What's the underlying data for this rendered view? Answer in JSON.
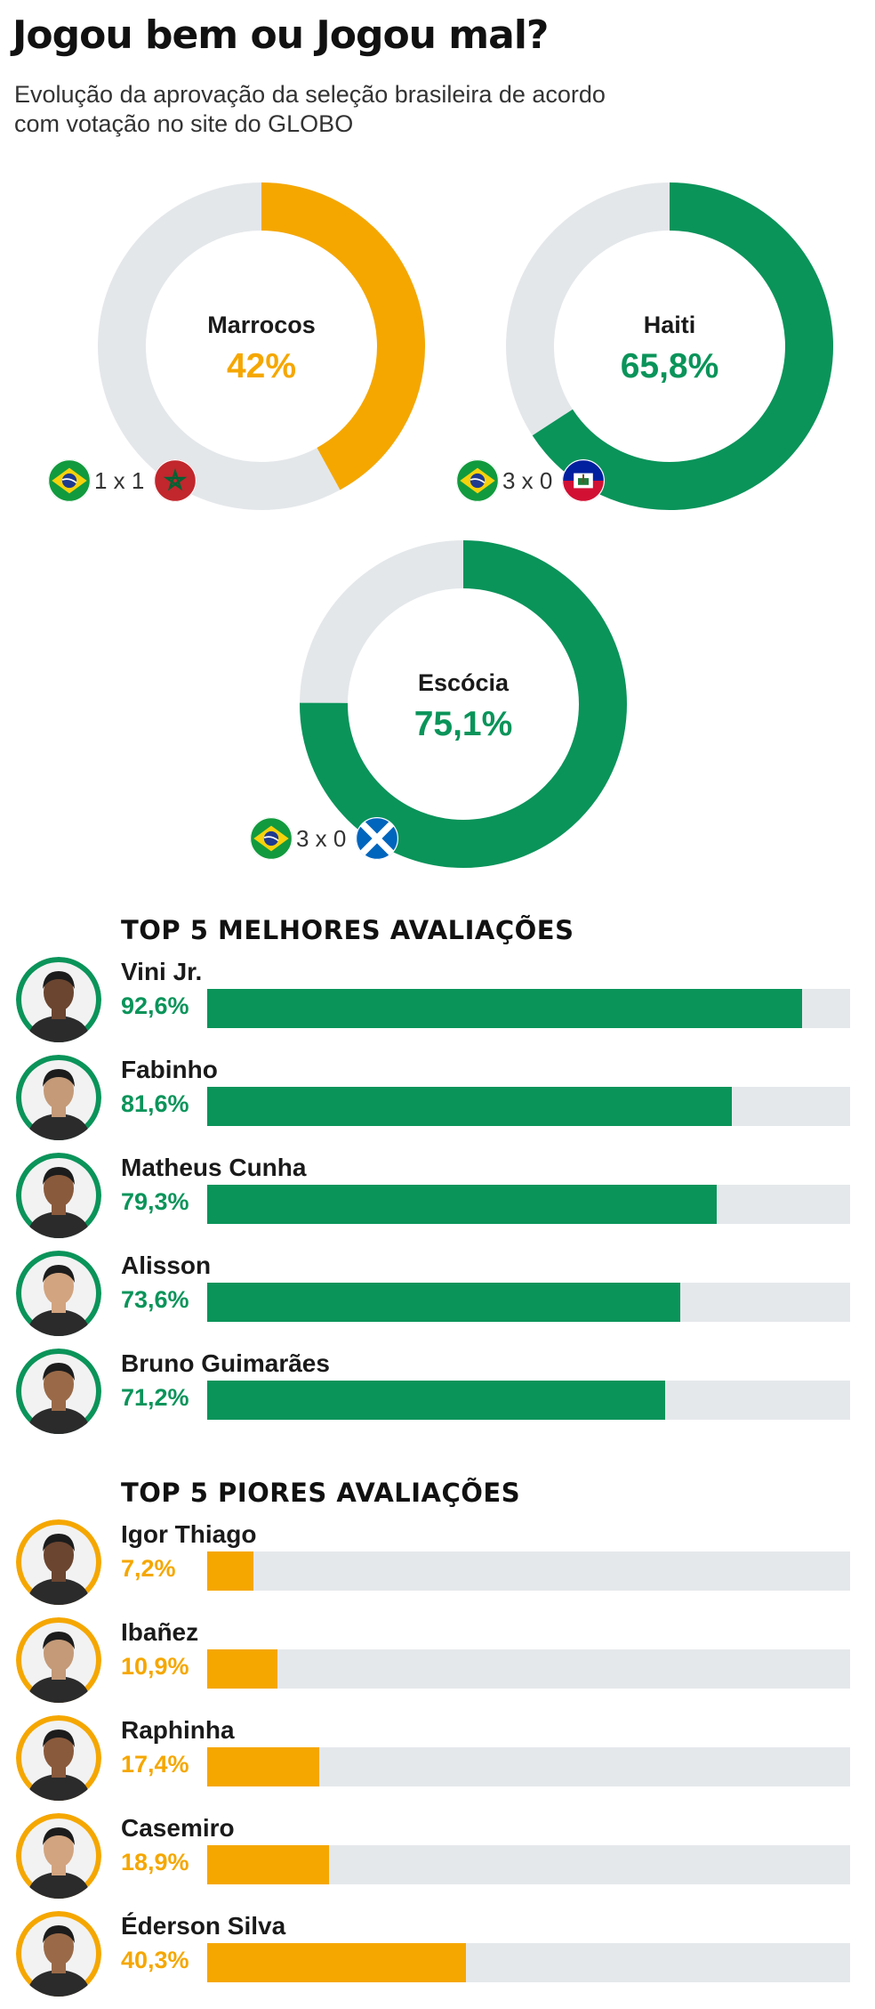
{
  "header": {
    "title": "Jogou bem ou Jogou mal?",
    "subtitle": "Evolução da aprovação da seleção brasileira de acordo com votação no site do GLOBO"
  },
  "colors": {
    "green": "#0a945a",
    "orange": "#f5a700",
    "track": "#e5e8eb",
    "donut_track": "#e4e7ea"
  },
  "chart_data": [
    {
      "type": "pie",
      "variant": "donut",
      "slices": [
        {
          "label": "Marrocos",
          "value": 42,
          "display": "42%",
          "color": "#f5a700",
          "score": "1 x 1",
          "flags": [
            "brazil-flag-icon",
            "morocco-flag-icon"
          ]
        },
        {
          "label": "Haiti",
          "value": 65.8,
          "display": "65,8%",
          "color": "#0a945a",
          "score": "3 x 0",
          "flags": [
            "brazil-flag-icon",
            "haiti-flag-icon"
          ]
        },
        {
          "label": "Escócia",
          "value": 75.1,
          "display": "75,1%",
          "color": "#0a945a",
          "score": "3 x 0",
          "flags": [
            "brazil-flag-icon",
            "scotland-flag-icon"
          ]
        }
      ]
    },
    {
      "type": "bar",
      "orientation": "horizontal",
      "title": "TOP 5 MELHORES AVALIAÇÕES",
      "color": "#0a945a",
      "xlim": [
        0,
        100
      ],
      "categories": [
        "Vini Jr.",
        "Fabinho",
        "Matheus Cunha",
        "Alisson",
        "Bruno Guimarães"
      ],
      "values": [
        92.6,
        81.6,
        79.3,
        73.6,
        71.2
      ],
      "labels": [
        "92,6%",
        "81,6%",
        "79,3%",
        "73,6%",
        "71,2%"
      ]
    },
    {
      "type": "bar",
      "orientation": "horizontal",
      "title": "TOP 5 PIORES AVALIAÇÕES",
      "color": "#f5a700",
      "xlim": [
        0,
        100
      ],
      "categories": [
        "Igor Thiago",
        "Ibañez",
        "Raphinha",
        "Casemiro",
        "Éderson Silva"
      ],
      "values": [
        7.2,
        10.9,
        17.4,
        18.9,
        40.3
      ],
      "labels": [
        "7,2%",
        "10,9%",
        "17,4%",
        "18,9%",
        "40,3%"
      ]
    }
  ]
}
